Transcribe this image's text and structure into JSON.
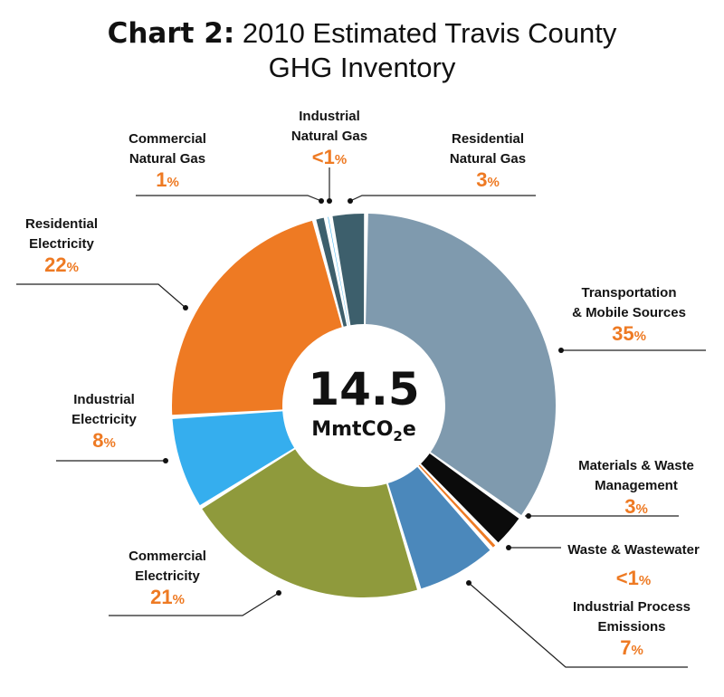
{
  "title": {
    "lead": "Chart 2:",
    "rest_line1": "2010 Estimated Travis County",
    "line2": "GHG Inventory"
  },
  "center": {
    "total": "14.5",
    "unit_main": "MmtCO",
    "unit_sub": "2",
    "unit_tail": "e"
  },
  "chart_data": {
    "type": "pie",
    "title": "Chart 2: 2010 Estimated Travis County GHG Inventory",
    "total_label": "14.5 MmtCO2e",
    "slices": [
      {
        "label_lines": [
          "Transportation",
          "& Mobile Sources"
        ],
        "pct_text": "35",
        "value": 35,
        "color": "#7f9aae"
      },
      {
        "label_lines": [
          "Materials & Waste",
          "Management"
        ],
        "pct_text": "3",
        "value": 3,
        "color": "#0b0b0b"
      },
      {
        "label_lines": [
          "Waste & Wastewater"
        ],
        "pct_text": "<1",
        "value": 0.6,
        "color": "#ee7a23"
      },
      {
        "label_lines": [
          "Industrial Process",
          "Emissions"
        ],
        "pct_text": "7",
        "value": 7,
        "color": "#4b88bb"
      },
      {
        "label_lines": [
          "Commercial",
          "Electricity"
        ],
        "pct_text": "21",
        "value": 21,
        "color": "#8f9a3c"
      },
      {
        "label_lines": [
          "Industrial",
          "Electricity"
        ],
        "pct_text": "8",
        "value": 8,
        "color": "#35aeee"
      },
      {
        "label_lines": [
          "Residential",
          "Electricity"
        ],
        "pct_text": "22",
        "value": 22,
        "color": "#ee7a23"
      },
      {
        "label_lines": [
          "Commercial",
          "Natural Gas"
        ],
        "pct_text": "1",
        "value": 1,
        "color": "#3d5f6c"
      },
      {
        "label_lines": [
          "Industrial",
          "Natural Gas"
        ],
        "pct_text": "<1",
        "value": 0.4,
        "color": "#35aeee"
      },
      {
        "label_lines": [
          "Residential",
          "Natural Gas"
        ],
        "pct_text": "3",
        "value": 3,
        "color": "#3d5f6c"
      }
    ]
  }
}
